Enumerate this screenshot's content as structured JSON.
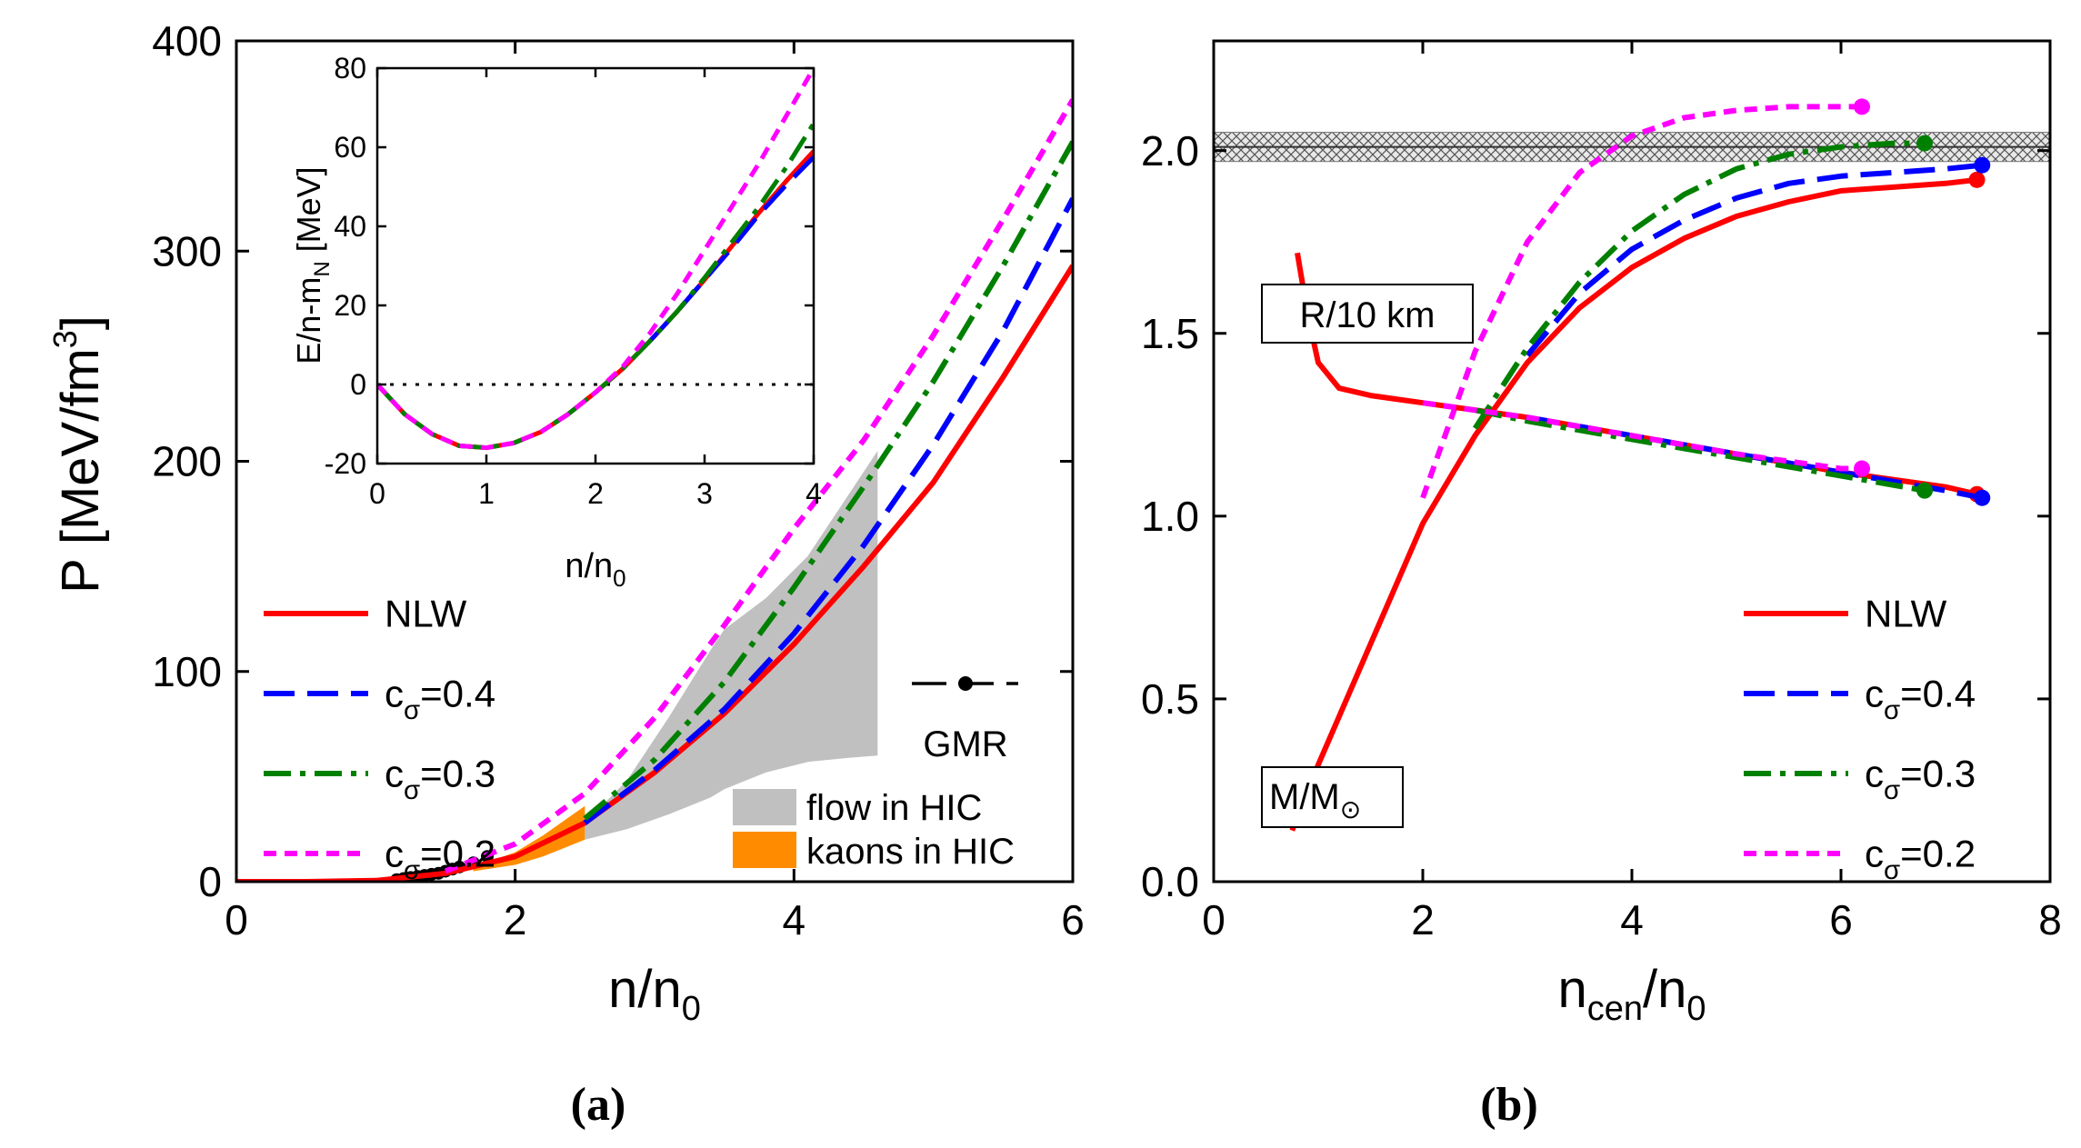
{
  "chart_data": [
    {
      "id": "a",
      "type": "line",
      "panel_label": "(a)",
      "xlabel": {
        "main": "n/n",
        "sub": "0"
      },
      "ylabel": {
        "main": "P [MeV/fm",
        "sup": "3",
        "tail": "]"
      },
      "xlim": [
        0,
        6
      ],
      "ylim": [
        0,
        400
      ],
      "xticks": [
        0,
        2,
        4,
        6
      ],
      "yticks": [
        0,
        100,
        200,
        300,
        400
      ],
      "series": [
        {
          "name": "NLW",
          "color": "#ff0000",
          "style": "solid",
          "x": [
            0,
            0.5,
            1.0,
            1.5,
            2.0,
            2.5,
            3.0,
            3.5,
            4.0,
            4.5,
            5.0,
            5.5,
            6.0
          ],
          "y": [
            0,
            0,
            0.5,
            4,
            12,
            28,
            52,
            80,
            113,
            150,
            190,
            240,
            293
          ]
        },
        {
          "name": "c_σ=0.4",
          "color": "#0000ff",
          "style": "dash",
          "x": [
            2.5,
            3.0,
            3.5,
            4.0,
            4.5,
            5.0,
            5.5,
            6.0
          ],
          "y": [
            28,
            53,
            82,
            118,
            160,
            208,
            262,
            325
          ]
        },
        {
          "name": "c_σ=0.3",
          "color": "#008000",
          "style": "dashdot",
          "x": [
            2.5,
            3.0,
            3.5,
            4.0,
            4.5,
            5.0,
            5.5,
            6.0
          ],
          "y": [
            30,
            58,
            95,
            140,
            188,
            238,
            293,
            352
          ]
        },
        {
          "name": "c_σ=0.2",
          "color": "#ff00ff",
          "style": "shortdash",
          "x": [
            1.5,
            2.0,
            2.5,
            3.0,
            3.5,
            4.0,
            4.5,
            5.0,
            5.5,
            6.0
          ],
          "y": [
            5,
            18,
            42,
            78,
            122,
            168,
            210,
            260,
            315,
            372
          ]
        }
      ],
      "gmr_points": {
        "x": [
          1.15,
          1.2,
          1.25,
          1.3,
          1.35,
          1.4,
          1.45,
          1.5,
          1.55,
          1.6,
          1.7,
          1.8
        ],
        "y": [
          1,
          1.5,
          2,
          2.5,
          3,
          3.5,
          4,
          5,
          6,
          7,
          9,
          12
        ]
      },
      "flow_band": {
        "x": [
          2.5,
          2.8,
          3.1,
          3.4,
          3.5,
          3.8,
          4.1,
          4.4,
          4.6
        ],
        "lower": [
          20,
          25,
          32,
          40,
          44,
          52,
          57,
          59,
          60
        ],
        "upper": [
          28,
          48,
          78,
          110,
          120,
          135,
          155,
          185,
          205
        ]
      },
      "kaon_band": {
        "x": [
          1.7,
          2.0,
          2.2,
          2.5
        ],
        "lower": [
          5,
          8,
          12,
          20
        ],
        "upper": [
          7,
          14,
          22,
          36
        ]
      },
      "legend": [
        {
          "label": "NLW",
          "sub": ""
        },
        {
          "label": "c",
          "sub": "σ",
          "tail": "=0.4"
        },
        {
          "label": "c",
          "sub": "σ",
          "tail": "=0.3"
        },
        {
          "label": "c",
          "sub": "σ",
          "tail": "=0.2"
        }
      ],
      "legend2": {
        "gmr": "GMR",
        "flow": "flow in HIC",
        "kaons": "kaons in HIC",
        "flow_color": "#c0c0c0",
        "kaon_color": "#ff8c00"
      },
      "inset": {
        "xlabel": {
          "main": "n/n",
          "sub": "0"
        },
        "ylabel": {
          "main": "E/n-m",
          "sub": "N",
          "tail": " [MeV]"
        },
        "xlim": [
          0,
          4
        ],
        "ylim": [
          -20,
          80
        ],
        "xticks": [
          0,
          1,
          2,
          3,
          4
        ],
        "yticks": [
          -20,
          0,
          20,
          40,
          60,
          80
        ],
        "series": [
          {
            "name": "NLW",
            "color": "#ff0000",
            "style": "solid",
            "x": [
              0,
              0.25,
              0.5,
              0.75,
              1.0,
              1.25,
              1.5,
              1.75,
              2.0,
              2.25,
              2.5,
              2.75,
              3.0,
              3.25,
              3.5,
              3.75,
              4.0
            ],
            "y": [
              0,
              -7.5,
              -12.5,
              -15.5,
              -16,
              -14.8,
              -12,
              -7.5,
              -2,
              4,
              11,
              18.5,
              26.5,
              35,
              43.5,
              51.5,
              59
            ]
          },
          {
            "name": "c_σ=0.4",
            "color": "#0000ff",
            "style": "dash",
            "x": [
              2.5,
              2.75,
              3.0,
              3.25,
              3.5,
              3.75,
              4.0
            ],
            "y": [
              11,
              18.5,
              26.5,
              34.5,
              43,
              50.5,
              57.5
            ]
          },
          {
            "name": "c_σ=0.3",
            "color": "#008000",
            "style": "dashdot",
            "x": [
              0,
              0.25,
              0.5,
              0.75,
              1.0,
              1.25,
              1.5,
              1.75,
              2.0,
              2.25,
              2.5,
              2.75,
              3.0,
              3.25,
              3.5,
              3.75,
              4.0
            ],
            "y": [
              0,
              -7.5,
              -12.5,
              -15.5,
              -16,
              -14.8,
              -12,
              -7.5,
              -2,
              4,
              11,
              18.5,
              27,
              36,
              45,
              55,
              66
            ]
          },
          {
            "name": "c_σ=0.2",
            "color": "#ff00ff",
            "style": "shortdash",
            "x": [
              0,
              0.25,
              0.5,
              0.75,
              1.0,
              1.25,
              1.5,
              1.75,
              2.0,
              2.25,
              2.5,
              2.75,
              3.0,
              3.25,
              3.5,
              3.75,
              4.0
            ],
            "y": [
              0,
              -7.5,
              -12.5,
              -15.5,
              -16,
              -14.8,
              -12,
              -7.5,
              -2,
              4.5,
              13,
              23,
              34,
              45,
              56,
              68,
              80
            ]
          }
        ]
      }
    },
    {
      "id": "b",
      "type": "line",
      "panel_label": "(b)",
      "xlabel": {
        "main": "n",
        "sub": "cen",
        "tail": "/n",
        "sub2": "0"
      },
      "xlim": [
        0,
        8
      ],
      "ylim": [
        0,
        2.3
      ],
      "xticks": [
        0,
        2,
        4,
        6,
        8
      ],
      "yticks": [
        0.0,
        0.5,
        1.0,
        1.5,
        2.0
      ],
      "ytick_labels": [
        "0.0",
        "0.5",
        "1.0",
        "1.5",
        "2.0"
      ],
      "band": {
        "ymin": 1.97,
        "ymax": 2.05
      },
      "band_line": 2.01,
      "mass_series": [
        {
          "name": "NLW",
          "color": "#ff0000",
          "style": "solid",
          "x": [
            0.75,
            1.0,
            1.5,
            2.0,
            2.5,
            3.0,
            3.5,
            4.0,
            4.5,
            5.0,
            5.5,
            6.0,
            6.5,
            7.0,
            7.3
          ],
          "y": [
            0.14,
            0.32,
            0.65,
            0.98,
            1.22,
            1.42,
            1.57,
            1.68,
            1.76,
            1.82,
            1.86,
            1.89,
            1.9,
            1.91,
            1.92
          ],
          "end": [
            7.3,
            1.92
          ]
        },
        {
          "name": "c_σ=0.4",
          "color": "#0000ff",
          "style": "dash",
          "x": [
            3.0,
            3.5,
            4.0,
            4.5,
            5.0,
            5.5,
            6.0,
            6.5,
            7.0,
            7.35
          ],
          "y": [
            1.44,
            1.61,
            1.73,
            1.81,
            1.87,
            1.91,
            1.93,
            1.94,
            1.95,
            1.96
          ],
          "end": [
            7.35,
            1.96
          ]
        },
        {
          "name": "c_σ=0.3",
          "color": "#008000",
          "style": "dashdot",
          "x": [
            2.5,
            3.0,
            3.5,
            4.0,
            4.5,
            5.0,
            5.5,
            6.0,
            6.5,
            6.8
          ],
          "y": [
            1.24,
            1.46,
            1.64,
            1.78,
            1.88,
            1.95,
            1.99,
            2.01,
            2.02,
            2.02
          ],
          "end": [
            6.8,
            2.02
          ]
        },
        {
          "name": "c_σ=0.2",
          "color": "#ff00ff",
          "style": "shortdash",
          "x": [
            2.0,
            2.5,
            3.0,
            3.5,
            4.0,
            4.5,
            5.0,
            5.5,
            6.0,
            6.2
          ],
          "y": [
            1.05,
            1.45,
            1.75,
            1.94,
            2.04,
            2.09,
            2.11,
            2.12,
            2.12,
            2.12
          ],
          "end": [
            6.2,
            2.12
          ]
        }
      ],
      "radius_series": [
        {
          "name": "NLW",
          "color": "#ff0000",
          "style": "solid",
          "x": [
            0.8,
            0.9,
            1.0,
            1.2,
            1.5,
            2.0,
            3.0,
            4.0,
            5.0,
            6.0,
            7.0,
            7.3
          ],
          "y": [
            1.72,
            1.55,
            1.42,
            1.35,
            1.33,
            1.31,
            1.27,
            1.22,
            1.17,
            1.12,
            1.08,
            1.06
          ],
          "end": [
            7.3,
            1.06
          ]
        },
        {
          "name": "c_σ=0.4",
          "color": "#0000ff",
          "style": "dash",
          "x": [
            3.0,
            4.0,
            5.0,
            6.0,
            7.0,
            7.35
          ],
          "y": [
            1.27,
            1.22,
            1.17,
            1.12,
            1.07,
            1.05
          ],
          "end": [
            7.35,
            1.05
          ]
        },
        {
          "name": "c_σ=0.3",
          "color": "#008000",
          "style": "dashdot",
          "x": [
            2.5,
            3.0,
            4.0,
            5.0,
            6.0,
            6.8
          ],
          "y": [
            1.29,
            1.26,
            1.21,
            1.16,
            1.11,
            1.07
          ],
          "end": [
            6.8,
            1.07
          ]
        },
        {
          "name": "c_σ=0.2",
          "color": "#ff00ff",
          "style": "shortdash",
          "x": [
            2.0,
            3.0,
            4.0,
            5.0,
            5.5,
            6.0,
            6.2
          ],
          "y": [
            1.31,
            1.27,
            1.22,
            1.17,
            1.15,
            1.13,
            1.13
          ],
          "end": [
            6.2,
            1.13
          ]
        }
      ],
      "annotations": {
        "radius": "R/10 km",
        "mass": {
          "main": "M/M",
          "sub": "⊙"
        }
      },
      "legend": [
        {
          "label": "NLW",
          "sub": ""
        },
        {
          "label": "c",
          "sub": "σ",
          "tail": "=0.4"
        },
        {
          "label": "c",
          "sub": "σ",
          "tail": "=0.3"
        },
        {
          "label": "c",
          "sub": "σ",
          "tail": "=0.2"
        }
      ]
    }
  ]
}
